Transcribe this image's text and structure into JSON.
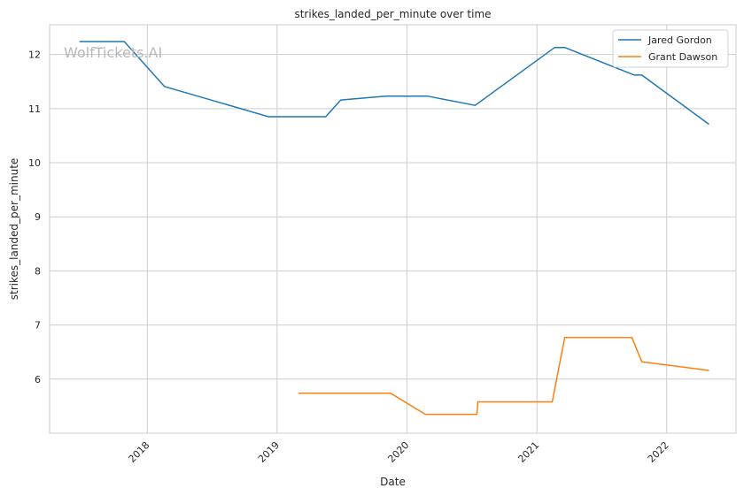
{
  "watermark": "WolfTickets.AI",
  "chart_data": {
    "type": "line",
    "title": "strikes_landed_per_minute over time",
    "xlabel": "Date",
    "ylabel": "strikes_landed_per_minute",
    "xlim": [
      "2017-04-01",
      "2022-07-15"
    ],
    "ylim": [
      5.0,
      12.55
    ],
    "x_ticks": [
      {
        "date": "2018-01-01",
        "label": "2018"
      },
      {
        "date": "2019-01-01",
        "label": "2019"
      },
      {
        "date": "2020-01-01",
        "label": "2020"
      },
      {
        "date": "2021-01-01",
        "label": "2021"
      },
      {
        "date": "2022-01-01",
        "label": "2022"
      }
    ],
    "y_ticks": [
      6,
      7,
      8,
      9,
      10,
      11,
      12
    ],
    "grid": true,
    "legend_position": "top-right",
    "series": [
      {
        "name": "Jared Gordon",
        "color": "#1f77b4",
        "points": [
          {
            "x": "2017-06-24",
            "y": 12.24
          },
          {
            "x": "2017-10-28",
            "y": 12.24
          },
          {
            "x": "2018-02-18",
            "y": 11.41
          },
          {
            "x": "2018-12-08",
            "y": 10.85
          },
          {
            "x": "2019-05-18",
            "y": 10.85
          },
          {
            "x": "2019-06-29",
            "y": 11.16
          },
          {
            "x": "2019-11-02",
            "y": 11.23
          },
          {
            "x": "2020-02-29",
            "y": 11.23
          },
          {
            "x": "2020-07-11",
            "y": 11.06
          },
          {
            "x": "2021-02-20",
            "y": 12.13
          },
          {
            "x": "2021-03-20",
            "y": 12.13
          },
          {
            "x": "2021-10-02",
            "y": 11.62
          },
          {
            "x": "2021-10-23",
            "y": 11.62
          },
          {
            "x": "2022-04-30",
            "y": 10.71
          }
        ]
      },
      {
        "name": "Grant Dawson",
        "color": "#ff7f0e",
        "points": [
          {
            "x": "2019-03-02",
            "y": 5.74
          },
          {
            "x": "2019-11-16",
            "y": 5.74
          },
          {
            "x": "2020-02-22",
            "y": 5.35
          },
          {
            "x": "2020-07-16",
            "y": 5.35
          },
          {
            "x": "2020-07-19",
            "y": 5.58
          },
          {
            "x": "2021-02-13",
            "y": 5.58
          },
          {
            "x": "2021-03-20",
            "y": 6.77
          },
          {
            "x": "2021-09-25",
            "y": 6.77
          },
          {
            "x": "2021-10-23",
            "y": 6.32
          },
          {
            "x": "2022-04-30",
            "y": 6.16
          }
        ]
      }
    ]
  }
}
